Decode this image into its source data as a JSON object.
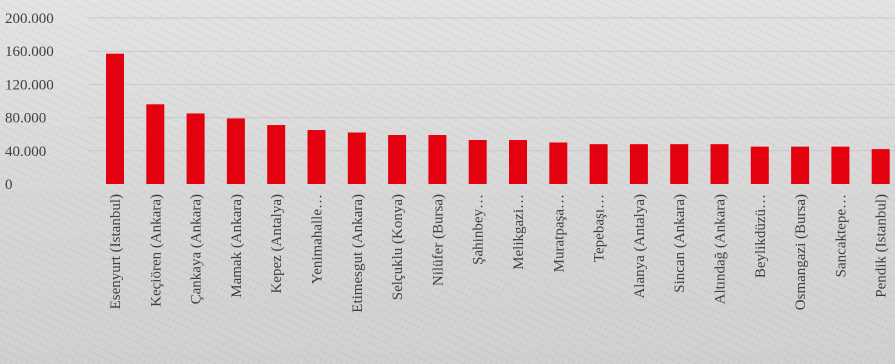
{
  "chart_data": {
    "type": "bar",
    "title": "",
    "xlabel": "",
    "ylabel": "",
    "ylim": [
      0,
      200000
    ],
    "yticks": [
      0,
      40000,
      80000,
      120000,
      160000,
      200000
    ],
    "ytick_labels": [
      "0",
      "40.000",
      "80.000",
      "120.000",
      "160.000",
      "200.000"
    ],
    "grid": true,
    "legend": "none",
    "bar_color": "#e3000f",
    "categories": [
      "Esenyurt (Istanbul)",
      "Keçiören (Ankara)",
      "Çankaya (Ankara)",
      "Mamak (Ankara)",
      "Kepez (Antalya)",
      "Yenimahalle…",
      "Etimesgut (Ankara)",
      "Selçuklu (Konya)",
      "Nilüfer (Bursa)",
      "Şahinbey…",
      "Melikgazi…",
      "Muratpaşa…",
      "Tepebaşı…",
      "Alanya (Antalya)",
      "Sincan (Ankara)",
      "Altındağ (Ankara)",
      "Beylikdüzü…",
      "Osmangazi (Bursa)",
      "Sancaktepe…",
      "Pendik (Istanbul)"
    ],
    "values": [
      157000,
      96000,
      85000,
      79000,
      71000,
      65000,
      62000,
      59000,
      59000,
      53000,
      53000,
      50000,
      48000,
      48000,
      48000,
      48000,
      45000,
      45000,
      45000,
      42000
    ]
  }
}
